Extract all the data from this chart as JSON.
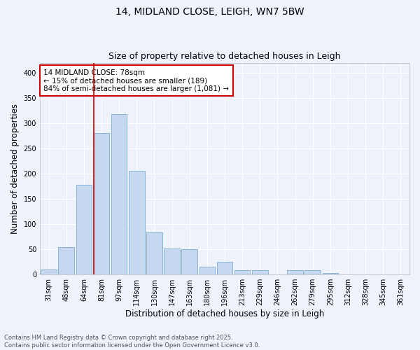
{
  "title_line1": "14, MIDLAND CLOSE, LEIGH, WN7 5BW",
  "title_line2": "Size of property relative to detached houses in Leigh",
  "categories": [
    "31sqm",
    "48sqm",
    "64sqm",
    "81sqm",
    "97sqm",
    "114sqm",
    "130sqm",
    "147sqm",
    "163sqm",
    "180sqm",
    "196sqm",
    "213sqm",
    "229sqm",
    "246sqm",
    "262sqm",
    "279sqm",
    "295sqm",
    "312sqm",
    "328sqm",
    "345sqm",
    "361sqm"
  ],
  "values": [
    10,
    55,
    178,
    280,
    318,
    205,
    83,
    52,
    50,
    15,
    25,
    8,
    8,
    0,
    8,
    8,
    3,
    0,
    0,
    0,
    0
  ],
  "bar_color": "#c5d8f0",
  "bar_edge_color": "#7aadd4",
  "vline_color": "#cc0000",
  "vline_index": 3,
  "ylabel": "Number of detached properties",
  "xlabel": "Distribution of detached houses by size in Leigh",
  "ylim": [
    0,
    420
  ],
  "yticks": [
    0,
    50,
    100,
    150,
    200,
    250,
    300,
    350,
    400
  ],
  "annotation_text": "14 MIDLAND CLOSE: 78sqm\n← 15% of detached houses are smaller (189)\n84% of semi-detached houses are larger (1,081) →",
  "annotation_box_color": "#ffffff",
  "annotation_box_edge": "#cc0000",
  "footnote": "Contains HM Land Registry data © Crown copyright and database right 2025.\nContains public sector information licensed under the Open Government Licence v3.0.",
  "bg_color": "#eef2fb",
  "grid_color": "#ffffff",
  "title_fontsize": 10,
  "subtitle_fontsize": 9,
  "axis_label_fontsize": 8.5,
  "tick_fontsize": 7,
  "annotation_fontsize": 7.5,
  "footnote_fontsize": 6
}
